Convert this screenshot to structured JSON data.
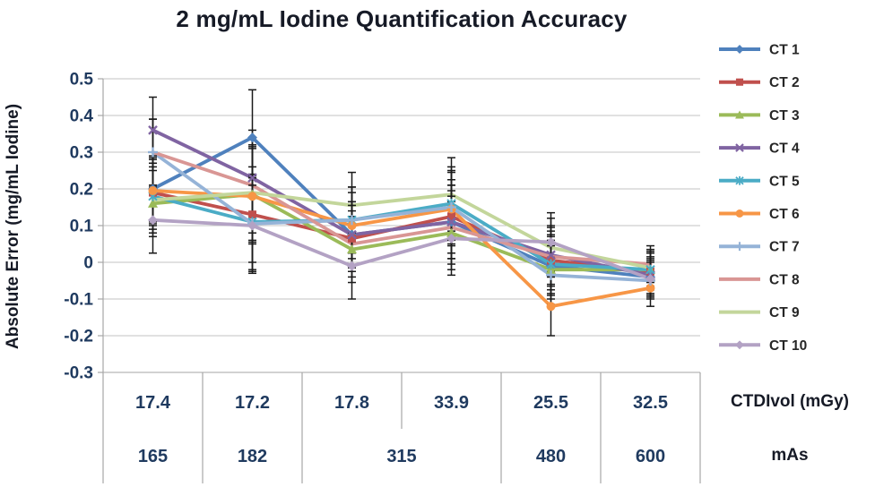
{
  "chart_data": {
    "type": "line",
    "title": "2 mg/mL Iodine Quantification Accuracy",
    "ylabel": "Absolute Error (mg/mL Iodine)",
    "ylim": [
      -0.3,
      0.5
    ],
    "ytick_step": 0.1,
    "grid": true,
    "legend_position": "right",
    "categories": [
      "17.4",
      "17.2",
      "17.8",
      "33.9",
      "25.5",
      "32.5"
    ],
    "x_axis_table": {
      "rows": [
        {
          "label": "CTDIvol (mGy)",
          "cells": [
            {
              "text": "17.4",
              "span": 1
            },
            {
              "text": "17.2",
              "span": 1
            },
            {
              "text": "17.8",
              "span": 1
            },
            {
              "text": "33.9",
              "span": 1
            },
            {
              "text": "25.5",
              "span": 1
            },
            {
              "text": "32.5",
              "span": 1
            }
          ]
        },
        {
          "label": "mAs",
          "cells": [
            {
              "text": "165",
              "span": 1
            },
            {
              "text": "182",
              "span": 1
            },
            {
              "text": "315",
              "span": 2
            },
            {
              "text": "480",
              "span": 1
            },
            {
              "text": "600",
              "span": 1
            }
          ]
        }
      ]
    },
    "series": [
      {
        "name": "CT 1",
        "color": "#4F81BD",
        "marker": "diamond",
        "values": [
          0.2,
          0.34,
          0.075,
          0.11,
          -0.01,
          -0.04
        ]
      },
      {
        "name": "CT 2",
        "color": "#C0504D",
        "marker": "square",
        "values": [
          0.19,
          0.13,
          0.065,
          0.125,
          0.005,
          -0.025
        ]
      },
      {
        "name": "CT 3",
        "color": "#9BBB59",
        "marker": "triangle",
        "values": [
          0.16,
          0.185,
          0.035,
          0.08,
          -0.02,
          -0.02
        ]
      },
      {
        "name": "CT 4",
        "color": "#8064A2",
        "marker": "x",
        "values": [
          0.36,
          0.23,
          0.075,
          0.11,
          0.02,
          -0.035
        ]
      },
      {
        "name": "CT 5",
        "color": "#4BACC6",
        "marker": "asterisk",
        "values": [
          0.18,
          0.11,
          0.115,
          0.16,
          -0.005,
          -0.02
        ]
      },
      {
        "name": "CT 6",
        "color": "#F79646",
        "marker": "circle",
        "values": [
          0.195,
          0.18,
          0.1,
          0.145,
          -0.12,
          -0.07
        ]
      },
      {
        "name": "CT 7",
        "color": "#95B3D7",
        "marker": "plus",
        "values": [
          0.3,
          0.105,
          0.115,
          0.15,
          -0.035,
          -0.05
        ]
      },
      {
        "name": "CT 8",
        "color": "#D99694",
        "marker": "none",
        "values": [
          0.3,
          0.21,
          0.05,
          0.095,
          0.015,
          -0.005
        ]
      },
      {
        "name": "CT 9",
        "color": "#C3D69B",
        "marker": "none",
        "values": [
          0.17,
          0.19,
          0.155,
          0.185,
          0.04,
          -0.015
        ]
      },
      {
        "name": "CT 10",
        "color": "#B3A2C4",
        "marker": "diamond",
        "values": [
          0.115,
          0.1,
          -0.01,
          0.065,
          0.055,
          -0.045
        ]
      }
    ],
    "error_bars_plus_minus": [
      0.09,
      0.13,
      0.09,
      0.1,
      0.08,
      0.05
    ],
    "colors": {
      "gridline": "#C3C3C3",
      "axis": "#A6A6A6",
      "tick_text": "#1F3A5F",
      "error_bar": "#1A1A1A",
      "legend_text": "#262626",
      "title_text": "#161A26"
    }
  }
}
